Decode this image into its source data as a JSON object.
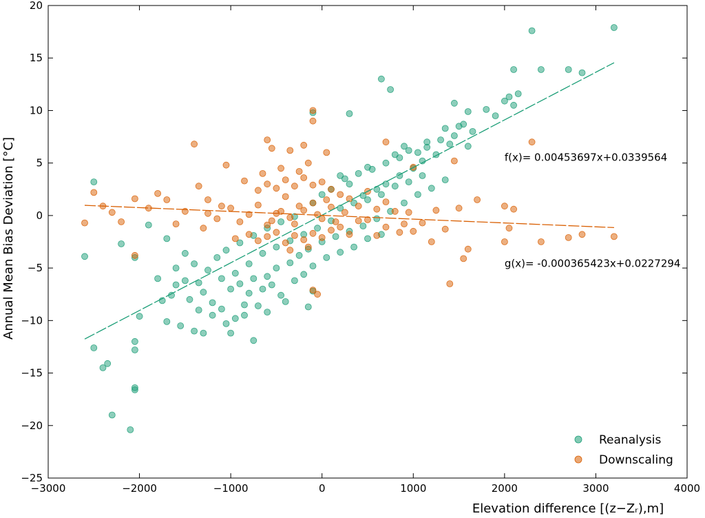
{
  "chart_data": {
    "type": "scatter",
    "title": "",
    "xlabel": "Elevation difference [(z−Zᵣ),m]",
    "ylabel": "Annual Mean Bias Deviation [°C]",
    "xlim": [
      -3000,
      4000
    ],
    "ylim": [
      -25,
      20
    ],
    "xticks": [
      -3000,
      -2000,
      -1000,
      0,
      1000,
      2000,
      3000,
      4000
    ],
    "xtick_labels": [
      "−3000",
      "−2000",
      "−1000",
      "0",
      "1000",
      "2000",
      "3000",
      "4000"
    ],
    "yticks": [
      -25,
      -20,
      -15,
      -10,
      -5,
      0,
      5,
      10,
      15,
      20
    ],
    "ytick_labels": [
      "−25",
      "−20",
      "−15",
      "−10",
      "−5",
      "0",
      "5",
      "10",
      "15",
      "20"
    ],
    "grid": false,
    "legend_position": "bottom-right",
    "series": [
      {
        "name": "Reanalysis",
        "color": "#1b9e77",
        "trend": {
          "slope": 0.00453697,
          "intercept": 0.0339564,
          "x_range": [
            -2600,
            3200
          ]
        },
        "points": [
          [
            3200,
            17.9
          ],
          [
            2300,
            17.6
          ],
          [
            2100,
            13.9
          ],
          [
            2400,
            13.9
          ],
          [
            2700,
            13.9
          ],
          [
            2850,
            13.6
          ],
          [
            650,
            13.0
          ],
          [
            750,
            12.0
          ],
          [
            2150,
            11.6
          ],
          [
            2050,
            11.3
          ],
          [
            2000,
            10.9
          ],
          [
            2100,
            10.5
          ],
          [
            1450,
            10.7
          ],
          [
            1600,
            9.9
          ],
          [
            1800,
            10.1
          ],
          [
            1900,
            9.5
          ],
          [
            300,
            9.7
          ],
          [
            -100,
            9.8
          ],
          [
            1500,
            8.5
          ],
          [
            1650,
            8.0
          ],
          [
            1350,
            8.3
          ],
          [
            1150,
            7.0
          ],
          [
            900,
            6.6
          ],
          [
            1600,
            6.6
          ],
          [
            1050,
            6.0
          ],
          [
            800,
            5.8
          ],
          [
            500,
            4.6
          ],
          [
            250,
            3.5
          ],
          [
            -2500,
            3.2
          ],
          [
            -2600,
            -3.9
          ],
          [
            -2200,
            -2.7
          ],
          [
            -2050,
            -4.0
          ],
          [
            -1900,
            -0.9
          ],
          [
            -1700,
            -2.2
          ],
          [
            -1500,
            -3.6
          ],
          [
            -1400,
            -4.6
          ],
          [
            -1800,
            -6.0
          ],
          [
            -1600,
            -6.6
          ],
          [
            -1750,
            -8.1
          ],
          [
            -1700,
            -10.1
          ],
          [
            -1550,
            -10.5
          ],
          [
            -1400,
            -11.0
          ],
          [
            -1300,
            -11.2
          ],
          [
            -1050,
            -10.3
          ],
          [
            -1000,
            -11.2
          ],
          [
            -750,
            -11.9
          ],
          [
            -600,
            -9.2
          ],
          [
            -850,
            -8.5
          ],
          [
            -400,
            -8.2
          ],
          [
            -150,
            -8.7
          ],
          [
            -100,
            -7.2
          ],
          [
            -2500,
            -12.6
          ],
          [
            -2400,
            -14.5
          ],
          [
            -2350,
            -14.1
          ],
          [
            -2300,
            -19.0
          ],
          [
            -2050,
            -16.4
          ],
          [
            -2050,
            -16.6
          ],
          [
            -2050,
            -12.0
          ],
          [
            -2050,
            -12.8
          ],
          [
            -2100,
            -20.4
          ],
          [
            -2000,
            -9.6
          ],
          [
            -1300,
            -7.3
          ],
          [
            -1200,
            -8.3
          ],
          [
            -1100,
            -6.0
          ],
          [
            -950,
            -5.5
          ],
          [
            -800,
            -4.6
          ],
          [
            -650,
            -3.6
          ],
          [
            -500,
            -3.0
          ],
          [
            -350,
            -2.4
          ],
          [
            -200,
            -1.8
          ],
          [
            -50,
            -1.2
          ],
          [
            100,
            -0.5
          ],
          [
            200,
            0.7
          ],
          [
            350,
            1.2
          ],
          [
            450,
            1.9
          ],
          [
            600,
            2.5
          ],
          [
            700,
            3.0
          ],
          [
            850,
            3.8
          ],
          [
            1000,
            4.5
          ],
          [
            1100,
            5.2
          ],
          [
            1250,
            5.8
          ],
          [
            1400,
            6.8
          ],
          [
            -1250,
            -5.2
          ],
          [
            -1150,
            -4.0
          ],
          [
            -1050,
            -3.3
          ],
          [
            -900,
            -2.6
          ],
          [
            -750,
            -1.9
          ],
          [
            -600,
            -1.2
          ],
          [
            -450,
            -0.6
          ],
          [
            -300,
            -0.1
          ],
          [
            -1000,
            -7.0
          ],
          [
            -900,
            -6.5
          ],
          [
            -750,
            -6.0
          ],
          [
            -600,
            -5.8
          ],
          [
            -500,
            -5.0
          ],
          [
            -350,
            -4.5
          ],
          [
            -250,
            -3.8
          ],
          [
            -150,
            -3.2
          ],
          [
            0,
            -2.5
          ],
          [
            150,
            -2.0
          ],
          [
            300,
            -1.5
          ],
          [
            450,
            -1.0
          ],
          [
            600,
            -0.3
          ],
          [
            750,
            0.4
          ],
          [
            900,
            1.2
          ],
          [
            1050,
            2.0
          ],
          [
            1200,
            2.6
          ],
          [
            1350,
            3.4
          ],
          [
            500,
            1.5
          ],
          [
            650,
            2.0
          ],
          [
            800,
            2.8
          ],
          [
            950,
            3.2
          ],
          [
            1100,
            3.8
          ],
          [
            -1450,
            -8.0
          ],
          [
            -1350,
            -9.0
          ],
          [
            -1200,
            -9.5
          ],
          [
            -1100,
            -8.9
          ],
          [
            -950,
            -9.8
          ],
          [
            -850,
            -9.5
          ],
          [
            -700,
            -8.6
          ],
          [
            300,
            3.0
          ],
          [
            400,
            4.0
          ],
          [
            550,
            4.4
          ],
          [
            700,
            5.0
          ],
          [
            850,
            5.5
          ],
          [
            950,
            6.2
          ],
          [
            1150,
            6.5
          ],
          [
            1300,
            7.2
          ],
          [
            1450,
            7.6
          ],
          [
            1550,
            8.7
          ],
          [
            -100,
            1.2
          ],
          [
            0,
            2.0
          ],
          [
            100,
            2.5
          ],
          [
            200,
            3.8
          ],
          [
            -1600,
            -5.0
          ],
          [
            -1500,
            -6.2
          ],
          [
            -1350,
            -6.4
          ],
          [
            -1650,
            -7.6
          ],
          [
            -800,
            -7.4
          ],
          [
            -650,
            -7.0
          ],
          [
            -550,
            -6.6
          ],
          [
            -450,
            -7.6
          ],
          [
            -300,
            -6.2
          ],
          [
            -200,
            -5.6
          ],
          [
            -100,
            -4.8
          ],
          [
            50,
            -4.0
          ],
          [
            200,
            -3.5
          ],
          [
            350,
            -3.0
          ],
          [
            500,
            -2.2
          ],
          [
            650,
            -1.8
          ]
        ]
      },
      {
        "name": "Downscaling",
        "color": "#d95f02",
        "trend": {
          "slope": -0.000365423,
          "intercept": 0.0227294,
          "x_range": [
            -2600,
            3200
          ]
        },
        "points": [
          [
            -2600,
            -0.7
          ],
          [
            -2500,
            2.2
          ],
          [
            -2400,
            0.9
          ],
          [
            -2300,
            0.3
          ],
          [
            -2200,
            -0.6
          ],
          [
            -2050,
            -3.8
          ],
          [
            -2050,
            1.6
          ],
          [
            -1900,
            0.7
          ],
          [
            -1800,
            2.1
          ],
          [
            -1700,
            1.5
          ],
          [
            -1600,
            -0.8
          ],
          [
            -1500,
            0.4
          ],
          [
            -1400,
            6.8
          ],
          [
            -1350,
            2.8
          ],
          [
            -1300,
            -1.2
          ],
          [
            -1250,
            1.5
          ],
          [
            -1100,
            0.9
          ],
          [
            -1050,
            4.8
          ],
          [
            -950,
            -2.2
          ],
          [
            -850,
            3.3
          ],
          [
            -600,
            7.2
          ],
          [
            -550,
            6.4
          ],
          [
            -350,
            6.2
          ],
          [
            -200,
            6.7
          ],
          [
            -100,
            10.0
          ],
          [
            -100,
            9.0
          ],
          [
            50,
            6.0
          ],
          [
            -50,
            -7.5
          ],
          [
            -100,
            -7.1
          ],
          [
            700,
            7.0
          ],
          [
            1000,
            4.6
          ],
          [
            1450,
            5.2
          ],
          [
            1500,
            0.7
          ],
          [
            1700,
            1.5
          ],
          [
            2000,
            0.9
          ],
          [
            2100,
            0.6
          ],
          [
            2050,
            -1.2
          ],
          [
            2000,
            -2.5
          ],
          [
            2300,
            7.0
          ],
          [
            2400,
            -2.5
          ],
          [
            2700,
            -2.1
          ],
          [
            2850,
            -1.8
          ],
          [
            3200,
            -2.0
          ],
          [
            1400,
            -6.5
          ],
          [
            1550,
            -4.1
          ],
          [
            1600,
            -3.2
          ],
          [
            1200,
            -2.5
          ],
          [
            1000,
            -1.5
          ],
          [
            900,
            -0.8
          ],
          [
            800,
            0.4
          ],
          [
            700,
            1.3
          ],
          [
            600,
            -1.9
          ],
          [
            500,
            2.3
          ],
          [
            400,
            -0.5
          ],
          [
            300,
            1.6
          ],
          [
            200,
            -1.1
          ],
          [
            100,
            0.8
          ],
          [
            0,
            -0.3
          ],
          [
            -100,
            1.2
          ],
          [
            -200,
            0.5
          ],
          [
            -300,
            -0.8
          ],
          [
            -400,
            1.8
          ],
          [
            -500,
            0.2
          ],
          [
            -600,
            -0.9
          ],
          [
            -700,
            1.0
          ],
          [
            -800,
            0.1
          ],
          [
            -900,
            -0.6
          ],
          [
            -1000,
            0.7
          ],
          [
            -1150,
            -0.3
          ],
          [
            -1250,
            0.2
          ],
          [
            -700,
            2.4
          ],
          [
            -600,
            3.0
          ],
          [
            -500,
            2.6
          ],
          [
            -400,
            3.4
          ],
          [
            -300,
            2.8
          ],
          [
            -200,
            3.6
          ],
          [
            -100,
            2.9
          ],
          [
            0,
            3.2
          ],
          [
            100,
            2.5
          ],
          [
            200,
            2.0
          ],
          [
            -800,
            -1.8
          ],
          [
            -700,
            -2.4
          ],
          [
            -600,
            -2.0
          ],
          [
            -500,
            -1.6
          ],
          [
            -400,
            -2.6
          ],
          [
            -300,
            -1.9
          ],
          [
            -200,
            -2.3
          ],
          [
            -100,
            -1.7
          ],
          [
            0,
            -2.1
          ],
          [
            100,
            -1.4
          ],
          [
            300,
            -1.8
          ],
          [
            400,
            0.9
          ],
          [
            500,
            -0.4
          ],
          [
            600,
            0.6
          ],
          [
            700,
            -1.1
          ],
          [
            850,
            -1.6
          ],
          [
            950,
            0.3
          ],
          [
            1100,
            -0.7
          ],
          [
            1250,
            0.5
          ],
          [
            1350,
            -1.3
          ],
          [
            -450,
            4.5
          ],
          [
            -250,
            4.2
          ],
          [
            -150,
            5.0
          ],
          [
            -650,
            4.0
          ],
          [
            -350,
            -3.3
          ],
          [
            -150,
            -3.0
          ],
          [
            50,
            1.5
          ],
          [
            150,
            -0.6
          ],
          [
            250,
            0.3
          ],
          [
            -550,
            -0.5
          ],
          [
            -450,
            0.4
          ],
          [
            -350,
            -0.2
          ],
          [
            -250,
            0.9
          ],
          [
            -50,
            0.1
          ]
        ]
      }
    ],
    "annotations": [
      {
        "text": "f(x)= 0.00453697x+0.0339564",
        "x": 2000,
        "y": 5.2
      },
      {
        "text": "g(x)= -0.000365423x+0.0227294",
        "x": 2000,
        "y": -4.9
      }
    ]
  }
}
